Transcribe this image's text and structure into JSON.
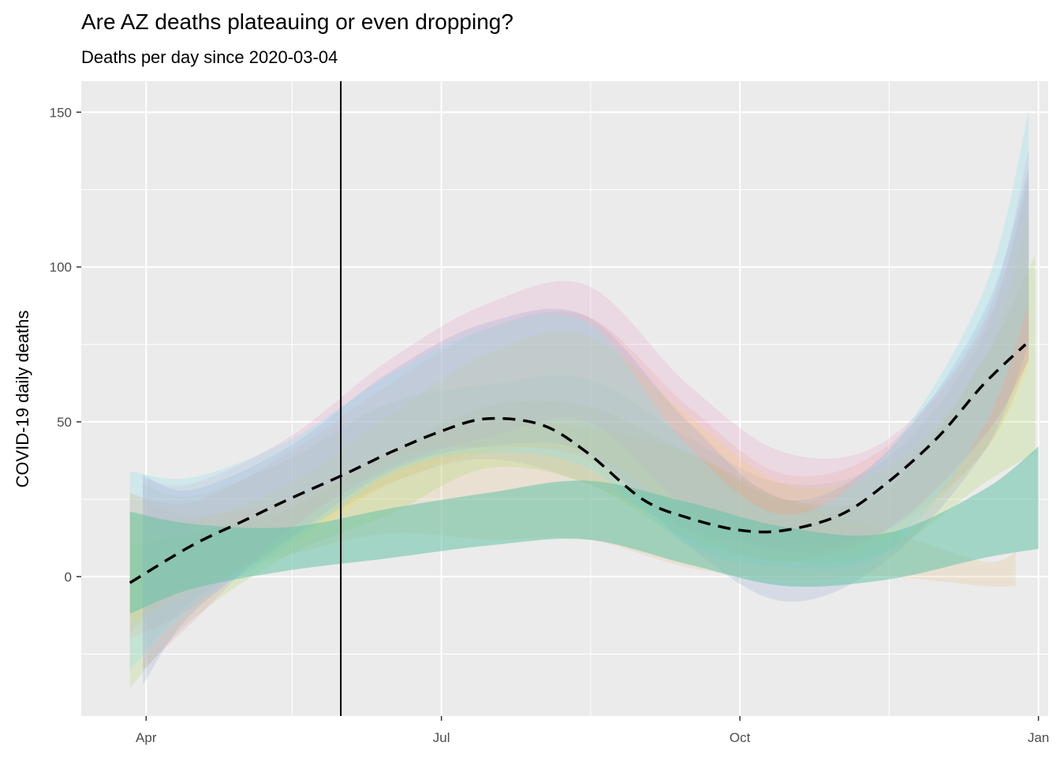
{
  "chart_data": {
    "type": "line",
    "title": "Are AZ deaths plateauing or even dropping?",
    "subtitle": "Deaths per day since 2020-03-04",
    "xlabel": "",
    "ylabel": "COVID-19 daily deaths",
    "x_axis": {
      "type": "date",
      "range": [
        "2020-03-12",
        "2021-01-04"
      ],
      "ticks": [
        {
          "date": "2020-04-01",
          "label": "Apr"
        },
        {
          "date": "2020-07-01",
          "label": "Jul"
        },
        {
          "date": "2020-10-01",
          "label": "Oct"
        },
        {
          "date": "2021-01-01",
          "label": "Jan"
        }
      ],
      "minor_ticks": [
        "2020-05-16",
        "2020-08-16",
        "2020-11-16"
      ]
    },
    "y_axis": {
      "range": [
        -45,
        160
      ],
      "ticks": [
        0,
        50,
        100,
        150
      ],
      "minor_ticks": [
        -25,
        25,
        75,
        125
      ]
    },
    "grid": true,
    "vertical_line": {
      "date": "2020-05-31",
      "color": "#000000"
    },
    "bands": [
      {
        "color": "#e5c494",
        "opacity": 0.28,
        "points": [
          [
            "2020-03-27",
            27,
            -18
          ],
          [
            "2020-04-15",
            20,
            -2
          ],
          [
            "2020-05-15",
            25,
            7
          ],
          [
            "2020-06-15",
            40,
            14
          ],
          [
            "2020-07-15",
            50,
            12
          ],
          [
            "2020-08-15",
            48,
            12
          ],
          [
            "2020-09-15",
            40,
            3
          ],
          [
            "2020-10-15",
            25,
            -1
          ],
          [
            "2020-11-15",
            15,
            0
          ],
          [
            "2020-12-15",
            5,
            -3
          ],
          [
            "2020-12-25",
            8,
            -3
          ]
        ]
      },
      {
        "color": "#a6d854",
        "opacity": 0.22,
        "points": [
          [
            "2020-03-27",
            10,
            -36
          ],
          [
            "2020-04-15",
            14,
            -14
          ],
          [
            "2020-05-15",
            22,
            7
          ],
          [
            "2020-06-15",
            40,
            20
          ],
          [
            "2020-07-15",
            55,
            35
          ],
          [
            "2020-08-15",
            55,
            30
          ],
          [
            "2020-09-15",
            40,
            12
          ],
          [
            "2020-10-15",
            25,
            5
          ],
          [
            "2020-11-15",
            28,
            8
          ],
          [
            "2020-12-15",
            70,
            30
          ],
          [
            "2020-12-31",
            104,
            40
          ]
        ]
      },
      {
        "color": "#fc8d62",
        "opacity": 0.15,
        "points": [
          [
            "2020-03-27",
            27,
            -20
          ],
          [
            "2020-04-15",
            24,
            -10
          ],
          [
            "2020-05-15",
            40,
            15
          ],
          [
            "2020-06-15",
            62,
            38
          ],
          [
            "2020-07-15",
            80,
            42
          ],
          [
            "2020-08-15",
            84,
            38
          ],
          [
            "2020-09-15",
            55,
            15
          ],
          [
            "2020-10-15",
            33,
            5
          ],
          [
            "2020-11-15",
            42,
            15
          ],
          [
            "2020-12-15",
            80,
            45
          ],
          [
            "2020-12-29",
            128,
            70
          ]
        ]
      },
      {
        "color": "#ffd92f",
        "opacity": 0.18,
        "points": [
          [
            "2020-03-27",
            20,
            -15
          ],
          [
            "2020-04-15",
            18,
            -5
          ],
          [
            "2020-05-15",
            30,
            10
          ],
          [
            "2020-06-15",
            52,
            30
          ],
          [
            "2020-07-15",
            72,
            40
          ],
          [
            "2020-08-15",
            78,
            40
          ],
          [
            "2020-09-15",
            52,
            20
          ],
          [
            "2020-10-15",
            30,
            10
          ],
          [
            "2020-11-15",
            35,
            12
          ],
          [
            "2020-12-15",
            70,
            40
          ],
          [
            "2020-12-29",
            118,
            68
          ]
        ]
      },
      {
        "color": "#e78ac3",
        "opacity": 0.2,
        "points": [
          [
            "2020-03-31",
            32,
            -30
          ],
          [
            "2020-04-15",
            30,
            -15
          ],
          [
            "2020-05-15",
            45,
            15
          ],
          [
            "2020-06-15",
            70,
            35
          ],
          [
            "2020-07-15",
            88,
            45
          ],
          [
            "2020-08-15",
            94,
            50
          ],
          [
            "2020-09-15",
            62,
            22
          ],
          [
            "2020-10-15",
            40,
            8
          ],
          [
            "2020-11-15",
            44,
            15
          ],
          [
            "2020-12-15",
            82,
            45
          ],
          [
            "2020-12-29",
            138,
            70
          ]
        ]
      },
      {
        "color": "#8da0cb",
        "opacity": 0.22,
        "points": [
          [
            "2020-03-31",
            33,
            -35
          ],
          [
            "2020-04-15",
            28,
            -12
          ],
          [
            "2020-05-15",
            42,
            12
          ],
          [
            "2020-06-15",
            66,
            34
          ],
          [
            "2020-07-15",
            82,
            42
          ],
          [
            "2020-08-15",
            84,
            40
          ],
          [
            "2020-09-15",
            50,
            10
          ],
          [
            "2020-10-15",
            25,
            -8
          ],
          [
            "2020-11-15",
            40,
            5
          ],
          [
            "2020-12-15",
            85,
            40
          ],
          [
            "2020-12-29",
            132,
            75
          ]
        ]
      },
      {
        "color": "#b3b3b3",
        "opacity": 0.2,
        "points": [
          [
            "2020-03-31",
            30,
            -25
          ],
          [
            "2020-04-15",
            26,
            -8
          ],
          [
            "2020-05-15",
            38,
            12
          ],
          [
            "2020-06-15",
            56,
            30
          ],
          [
            "2020-07-15",
            62,
            38
          ],
          [
            "2020-08-15",
            64,
            30
          ],
          [
            "2020-09-15",
            45,
            15
          ],
          [
            "2020-10-15",
            30,
            10
          ],
          [
            "2020-11-15",
            38,
            15
          ],
          [
            "2020-12-15",
            78,
            40
          ],
          [
            "2020-12-29",
            130,
            70
          ]
        ]
      },
      {
        "color": "#8ee0ea",
        "opacity": 0.3,
        "points": [
          [
            "2020-03-27",
            34,
            -30
          ],
          [
            "2020-04-15",
            32,
            -10
          ],
          [
            "2020-05-15",
            44,
            10
          ],
          [
            "2020-06-15",
            65,
            33
          ],
          [
            "2020-07-15",
            80,
            40
          ],
          [
            "2020-08-15",
            82,
            35
          ],
          [
            "2020-09-15",
            42,
            10
          ],
          [
            "2020-10-15",
            20,
            3
          ],
          [
            "2020-11-15",
            40,
            8
          ],
          [
            "2020-12-15",
            92,
            48
          ],
          [
            "2020-12-29",
            150,
            88
          ]
        ]
      },
      {
        "color": "#66c2a5",
        "opacity": 0.55,
        "points": [
          [
            "2020-03-27",
            21,
            -12
          ],
          [
            "2020-04-15",
            17,
            -4
          ],
          [
            "2020-05-15",
            16,
            2
          ],
          [
            "2020-06-15",
            22,
            6
          ],
          [
            "2020-07-15",
            27,
            10
          ],
          [
            "2020-08-15",
            31,
            12
          ],
          [
            "2020-09-15",
            24,
            4
          ],
          [
            "2020-10-15",
            16,
            -3
          ],
          [
            "2020-11-15",
            14,
            -1
          ],
          [
            "2020-12-15",
            28,
            6
          ],
          [
            "2021-01-01",
            42,
            9
          ]
        ]
      }
    ],
    "series": [
      {
        "style": "dashed",
        "color": "#000000",
        "points": [
          [
            "2020-03-27",
            -2
          ],
          [
            "2020-04-15",
            10
          ],
          [
            "2020-05-01",
            18
          ],
          [
            "2020-05-15",
            25
          ],
          [
            "2020-06-01",
            33
          ],
          [
            "2020-06-15",
            40
          ],
          [
            "2020-07-01",
            47
          ],
          [
            "2020-07-15",
            51
          ],
          [
            "2020-08-01",
            49
          ],
          [
            "2020-08-15",
            40
          ],
          [
            "2020-09-01",
            25
          ],
          [
            "2020-09-15",
            19
          ],
          [
            "2020-10-01",
            15
          ],
          [
            "2020-10-15",
            15
          ],
          [
            "2020-11-01",
            20
          ],
          [
            "2020-11-15",
            30
          ],
          [
            "2020-12-01",
            45
          ],
          [
            "2020-12-15",
            62
          ],
          [
            "2020-12-28",
            75
          ]
        ]
      }
    ]
  }
}
